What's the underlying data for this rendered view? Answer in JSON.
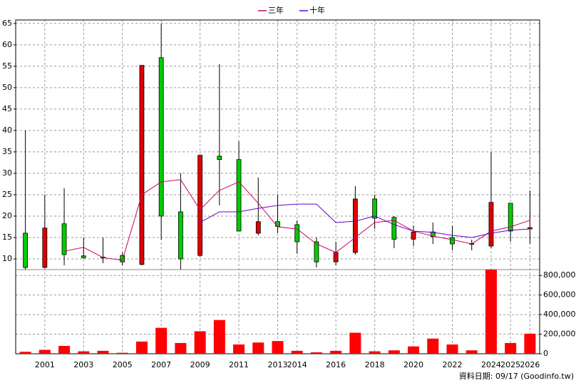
{
  "chart_data": {
    "type": "candlestick",
    "legend": "top",
    "grid": true,
    "footer": "資料日期: 09/17  (Goodinfo.tw)",
    "categories": [
      null,
      "2001",
      null,
      "2003",
      null,
      "2005",
      null,
      "2007",
      null,
      "2009",
      null,
      "2011",
      null,
      "2013",
      "2014",
      null,
      "2016",
      null,
      "2018",
      null,
      "2020",
      null,
      "2022",
      null,
      "2024",
      "2025",
      "2026"
    ],
    "up_color": "#e00000",
    "down_color": "#00cc00",
    "open": [
      16,
      8,
      18.2,
      10.7,
      10.4,
      10.8,
      8.7,
      57,
      21,
      10.8,
      34,
      33.2,
      16,
      18.7,
      18,
      14,
      9.3,
      11.5,
      24,
      19.7,
      14.6,
      16.3,
      15,
      13.6,
      13,
      23,
      17
    ],
    "high": [
      40,
      25,
      26.5,
      15,
      15,
      11.5,
      55.2,
      65,
      30,
      34.2,
      55.5,
      37.5,
      29,
      25,
      19,
      15,
      14,
      27,
      25,
      20,
      17.8,
      18.5,
      17.7,
      14.5,
      35,
      23,
      26
    ],
    "low": [
      7.5,
      7.8,
      8.5,
      10,
      9,
      8.5,
      8.5,
      14.5,
      7.5,
      10.5,
      22.5,
      16.5,
      15.5,
      16,
      11.2,
      8,
      8.5,
      11,
      17,
      12.5,
      13,
      13.5,
      12,
      12,
      12.5,
      14,
      13.5
    ],
    "close": [
      8,
      17.2,
      11,
      10.3,
      10.2,
      9.3,
      55.2,
      20,
      10,
      34.2,
      33.2,
      16.5,
      18.7,
      17.6,
      14,
      9.3,
      11.5,
      24,
      19.5,
      14.6,
      16.3,
      15.2,
      13.5,
      13.4,
      23.2,
      16.5,
      17.3
    ],
    "ylim": [
      7.5,
      65.8
    ],
    "yticks": [
      10,
      15,
      20,
      25,
      30,
      35,
      40,
      45,
      50,
      55,
      60,
      65
    ],
    "lines": [
      {
        "name": "三年",
        "color": "#cc0066",
        "values": [
          null,
          null,
          11.8,
          12.7,
          10.3,
          9.7,
          25,
          28,
          28.5,
          21.5,
          26,
          28,
          23,
          17.5,
          17,
          13.5,
          11.5,
          15,
          18.5,
          19,
          16.5,
          15.3,
          14.5,
          13.5,
          16.5,
          17.5,
          19
        ]
      },
      {
        "name": "十年",
        "color": "#6600cc",
        "values": [
          null,
          null,
          null,
          null,
          null,
          null,
          null,
          null,
          null,
          18.5,
          21,
          21,
          21.8,
          22.5,
          22.8,
          22.8,
          18.5,
          18.8,
          20,
          18,
          16.5,
          16.2,
          15.5,
          15,
          16,
          16.7,
          17
        ]
      }
    ],
    "volume": {
      "color": "#ff0000",
      "values": [
        20000,
        40000,
        80000,
        25000,
        30000,
        10000,
        125000,
        265000,
        110000,
        230000,
        345000,
        95000,
        115000,
        130000,
        30000,
        15000,
        30000,
        215000,
        25000,
        35000,
        75000,
        155000,
        95000,
        35000,
        860000,
        110000,
        205000
      ]
    },
    "y2lim": [
      0,
      860000
    ],
    "y2ticks": [
      0,
      {
        "value": 200000,
        "label": "200,000"
      },
      {
        "value": 400000,
        "label": "400,000"
      },
      {
        "value": 600000,
        "label": "600,000"
      },
      {
        "value": 800000,
        "label": "800,000"
      }
    ]
  }
}
